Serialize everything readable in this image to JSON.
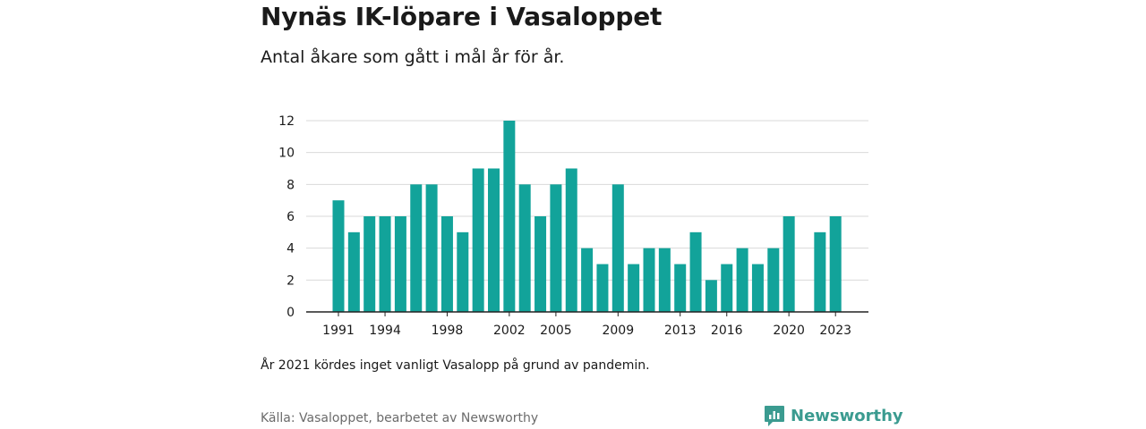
{
  "chart_data": {
    "type": "bar",
    "title": "Nynäs IK-löpare i Vasaloppet",
    "subtitle": "Antal åkare som gått i mål år för år.",
    "xlabel": "",
    "ylabel": "",
    "categories": [
      1991,
      1992,
      1993,
      1994,
      1995,
      1996,
      1997,
      1998,
      1999,
      2000,
      2001,
      2002,
      2003,
      2004,
      2005,
      2006,
      2007,
      2008,
      2009,
      2010,
      2011,
      2012,
      2013,
      2014,
      2015,
      2016,
      2017,
      2018,
      2019,
      2020,
      2021,
      2022,
      2023
    ],
    "values": [
      7,
      5,
      6,
      6,
      6,
      8,
      8,
      6,
      5,
      9,
      9,
      12,
      8,
      6,
      8,
      9,
      4,
      3,
      8,
      3,
      4,
      4,
      3,
      5,
      2,
      3,
      4,
      3,
      4,
      6,
      null,
      5,
      6
    ],
    "x_tick_labels": [
      "1991",
      "1994",
      "1998",
      "2002",
      "2005",
      "2009",
      "2013",
      "2016",
      "2020",
      "2023"
    ],
    "y_ticks": [
      0,
      2,
      4,
      6,
      8,
      10,
      12
    ],
    "ylim": [
      0,
      12
    ],
    "grid": true,
    "bar_color": "#12a39a"
  },
  "note": "År 2021 kördes inget vanligt Vasalopp på grund av pandemin.",
  "source": "Källa: Vasaloppet, bearbetet av Newsworthy",
  "brand": {
    "name": "Newsworthy",
    "icon": "newsworthy-logo-icon",
    "color": "#3b9b90"
  }
}
